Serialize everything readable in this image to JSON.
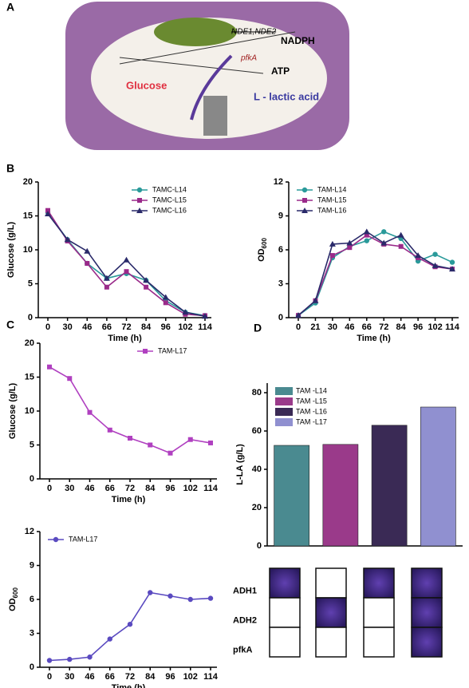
{
  "panel_labels": [
    "A",
    "B",
    "C",
    "D"
  ],
  "illustration": {
    "enzyme": "NDE1,NDE2",
    "cofactor": "NADPH",
    "gene": "pfkA",
    "energy": "ATP",
    "substrate": "Glucose",
    "product": "L - lactic acid"
  },
  "chart_data": [
    {
      "type": "line",
      "xlabel": "Time (h)",
      "ylabel": "Glucose (g/L)",
      "legend": "upper right",
      "categories": [
        "0",
        "30",
        "46",
        "66",
        "72",
        "84",
        "96",
        "102",
        "114"
      ],
      "ylim": [
        0,
        20
      ],
      "yticks": [
        0,
        5,
        10,
        15,
        20
      ],
      "series": [
        {
          "name": "TAMC-L14",
          "color": "#2a9a9a",
          "marker": "circle",
          "values": [
            15.5,
            11.5,
            8,
            5.8,
            6.5,
            5.5,
            2.5,
            0.8,
            0.3
          ]
        },
        {
          "name": "TAMC-L15",
          "color": "#9a2a8a",
          "marker": "square",
          "values": [
            15.8,
            11.3,
            8,
            4.5,
            6.8,
            4.5,
            2.2,
            0.5,
            0.3
          ]
        },
        {
          "name": "TAMC-L16",
          "color": "#2a2a6a",
          "marker": "triangle",
          "values": [
            15.3,
            11.5,
            9.8,
            5.8,
            8.5,
            5.5,
            3,
            0.8,
            0.2
          ]
        }
      ]
    },
    {
      "type": "line",
      "xlabel": "Time (h)",
      "ylabel": "OD",
      "ylabel_subscript": "600",
      "legend": "upper left",
      "categories": [
        "0",
        "21",
        "30",
        "46",
        "66",
        "72",
        "84",
        "96",
        "102",
        "114"
      ],
      "ylim": [
        0,
        12
      ],
      "yticks": [
        0,
        3,
        6,
        9,
        12
      ],
      "series": [
        {
          "name": "TAM-L14",
          "color": "#2a9a9a",
          "marker": "circle",
          "values": [
            0.2,
            1.3,
            5.3,
            6.3,
            6.8,
            7.6,
            7,
            5,
            5.6,
            4.9
          ]
        },
        {
          "name": "TAM-L15",
          "color": "#9a2a8a",
          "marker": "square",
          "values": [
            0.2,
            1.5,
            5.5,
            6.2,
            7.3,
            6.5,
            6.3,
            5.3,
            4.5,
            4.3
          ]
        },
        {
          "name": "TAM-L16",
          "color": "#2a2a6a",
          "marker": "triangle",
          "values": [
            0.2,
            1.5,
            6.5,
            6.6,
            7.6,
            6.6,
            7.3,
            5.5,
            4.6,
            4.3
          ]
        }
      ]
    },
    {
      "type": "line",
      "xlabel": "Time (h)",
      "ylabel": "Glucose (g/L)",
      "legend": "upper right",
      "categories": [
        "0",
        "30",
        "46",
        "66",
        "72",
        "84",
        "96",
        "102",
        "114"
      ],
      "ylim": [
        0,
        20
      ],
      "yticks": [
        0,
        5,
        10,
        15,
        20
      ],
      "series": [
        {
          "name": "TAM-L17",
          "color": "#b040c0",
          "marker": "square",
          "values": [
            16.5,
            14.8,
            9.8,
            7.2,
            6,
            5,
            3.8,
            5.8,
            5.3
          ]
        }
      ]
    },
    {
      "type": "line",
      "xlabel": "Time (h)",
      "ylabel": "OD",
      "ylabel_subscript": "600",
      "legend": "upper left",
      "categories": [
        "0",
        "30",
        "46",
        "66",
        "72",
        "84",
        "96",
        "102",
        "114"
      ],
      "ylim": [
        0,
        12
      ],
      "yticks": [
        0,
        3,
        6,
        9,
        12
      ],
      "series": [
        {
          "name": "TAM-L17",
          "color": "#5a4ac0",
          "marker": "circle",
          "values": [
            0.6,
            0.7,
            0.9,
            2.5,
            3.8,
            6.6,
            6.3,
            6,
            6.1
          ]
        }
      ]
    },
    {
      "type": "bar",
      "ylabel": "L-LA (g/L)",
      "legend": "upper left",
      "ylim": [
        0,
        85
      ],
      "yticks": [
        0,
        20,
        40,
        60,
        80
      ],
      "series": [
        {
          "name": "TAM -L14",
          "color": "#4a8a90",
          "values": [
            52.5
          ]
        },
        {
          "name": "TAM -L15",
          "color": "#9a3a8a",
          "values": [
            53
          ]
        },
        {
          "name": "TAM -L16",
          "color": "#3a2a55",
          "values": [
            63
          ]
        },
        {
          "name": "TAM -L17",
          "color": "#9090d0",
          "values": [
            72.5
          ]
        }
      ]
    }
  ],
  "gene_table": {
    "rows": [
      {
        "label": "ADH1",
        "cells": [
          true,
          false,
          true,
          true
        ]
      },
      {
        "label": "ADH2",
        "cells": [
          false,
          true,
          false,
          true
        ]
      },
      {
        "label": "pfkA",
        "cells": [
          false,
          false,
          false,
          true
        ]
      }
    ]
  }
}
